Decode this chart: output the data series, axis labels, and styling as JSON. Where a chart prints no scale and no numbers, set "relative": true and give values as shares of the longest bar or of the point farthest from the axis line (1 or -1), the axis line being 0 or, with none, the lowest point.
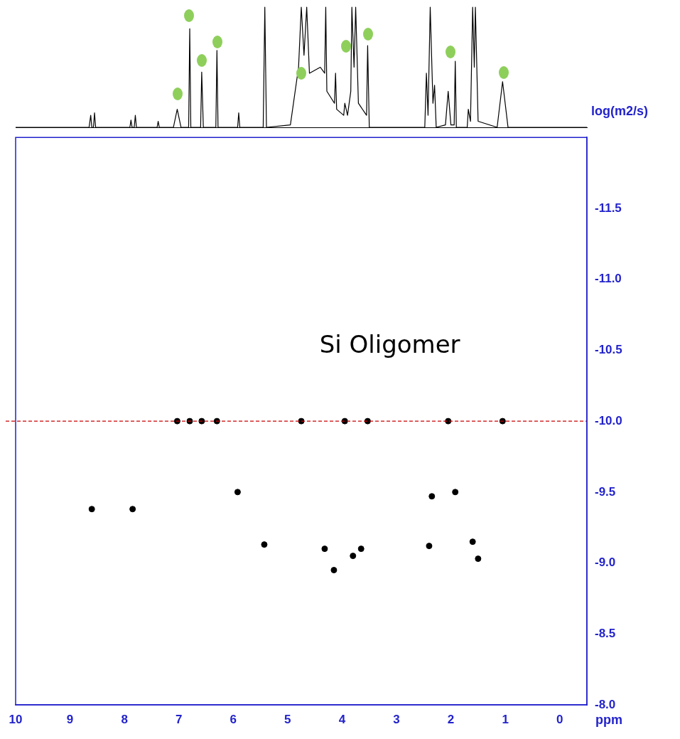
{
  "chart_data": [
    {
      "type": "line",
      "relative": true,
      "xlim": [
        10,
        -0.5
      ],
      "grid": false,
      "legend": false,
      "marker": "none",
      "series": [
        {
          "color": "#000000",
          "x": [
            10,
            8.65,
            8.62,
            8.6,
            8.57,
            8.55,
            8.53,
            7.9,
            7.88,
            7.86,
            7.82,
            7.8,
            7.78,
            7.4,
            7.38,
            7.36,
            7.1,
            7.03,
            6.96,
            6.82,
            6.8,
            6.78,
            6.6,
            6.58,
            6.55,
            6.32,
            6.3,
            6.28,
            5.92,
            5.9,
            5.88,
            5.45,
            5.42,
            5.39,
            4.95,
            4.8,
            4.75,
            4.7,
            4.65,
            4.6,
            4.4,
            4.32,
            4.3,
            4.28,
            4.14,
            4.12,
            4.1,
            3.97,
            3.95,
            3.9,
            3.84,
            3.82,
            3.78,
            3.75,
            3.7,
            3.55,
            3.53,
            3.5,
            3.3,
            2.48,
            2.45,
            2.42,
            2.38,
            2.33,
            2.3,
            2.27,
            2.1,
            2.05,
            2,
            1.94,
            1.92,
            1.9,
            1.7,
            1.68,
            1.64,
            1.6,
            1.57,
            1.55,
            1.5,
            1.15,
            1.05,
            0.95,
            -0.5
          ],
          "values": [
            0,
            0,
            0.1,
            0,
            0,
            0.12,
            0,
            0,
            0.06,
            0,
            0,
            0.1,
            0,
            0,
            0.05,
            0,
            0,
            0.15,
            0,
            0,
            0.82,
            0,
            0,
            0.46,
            0,
            0,
            0.64,
            0,
            0,
            0.12,
            0,
            0,
            1,
            0,
            0.02,
            0.5,
            1,
            0.6,
            1,
            0.45,
            0.5,
            0.45,
            1,
            0.3,
            0.2,
            0.45,
            0.15,
            0.1,
            0.2,
            0.1,
            0.3,
            1,
            0.5,
            1,
            0.2,
            0.1,
            0.68,
            0,
            0,
            0,
            0.45,
            0.1,
            1,
            0.2,
            0.35,
            0,
            0.02,
            0.3,
            0.02,
            0.02,
            0.55,
            0,
            0,
            0.15,
            0.05,
            1,
            0.5,
            1,
            0.05,
            0,
            0.38,
            0,
            0
          ]
        }
      ]
    },
    {
      "type": "scatter",
      "xlabel": "ppm",
      "ylabel": "log(m2/s)",
      "annotations": [
        "Si Oligomer"
      ],
      "xlim": [
        10,
        -0.5
      ],
      "xticks": [
        10,
        9,
        8,
        7,
        6,
        5,
        4,
        3,
        2,
        1,
        0
      ],
      "ylim": [
        -8,
        -12
      ],
      "yticks": [
        {
          "value": -11.5,
          "label": "-11.5"
        },
        {
          "value": -11,
          "label": "-11.0"
        },
        {
          "value": -10.5,
          "label": "-10.5"
        },
        {
          "value": -10,
          "label": "-10.0"
        },
        {
          "value": -9.5,
          "label": "-9.5"
        },
        {
          "value": -9,
          "label": "-9.0"
        },
        {
          "value": -8.5,
          "label": "-8.5"
        },
        {
          "value": -8,
          "label": "-8.0"
        }
      ],
      "grid": false,
      "legend": false,
      "marker": "circle",
      "ref_lines": [
        {
          "axis": "y",
          "value": -10,
          "color": "#cc0000",
          "line_style": "dashed"
        }
      ],
      "series": [
        {
          "color": "#000000",
          "x": [
            7.03,
            6.8,
            6.58,
            6.3,
            4.75,
            3.95,
            3.53,
            2.05,
            1.05,
            8.6,
            7.85,
            5.92,
            5.43,
            4.32,
            4.15,
            3.8,
            3.65,
            2.4,
            2.35,
            1.92,
            1.6,
            1.5
          ],
          "values": [
            -10.0,
            -10.0,
            -10.0,
            -10.0,
            -10.0,
            -10.0,
            -10.0,
            -10.0,
            -10.0,
            -9.38,
            -9.38,
            -9.5,
            -9.13,
            -9.1,
            -8.95,
            -9.05,
            -9.1,
            -9.12,
            -9.47,
            -9.5,
            -9.15,
            -9.03
          ]
        }
      ]
    }
  ]
}
